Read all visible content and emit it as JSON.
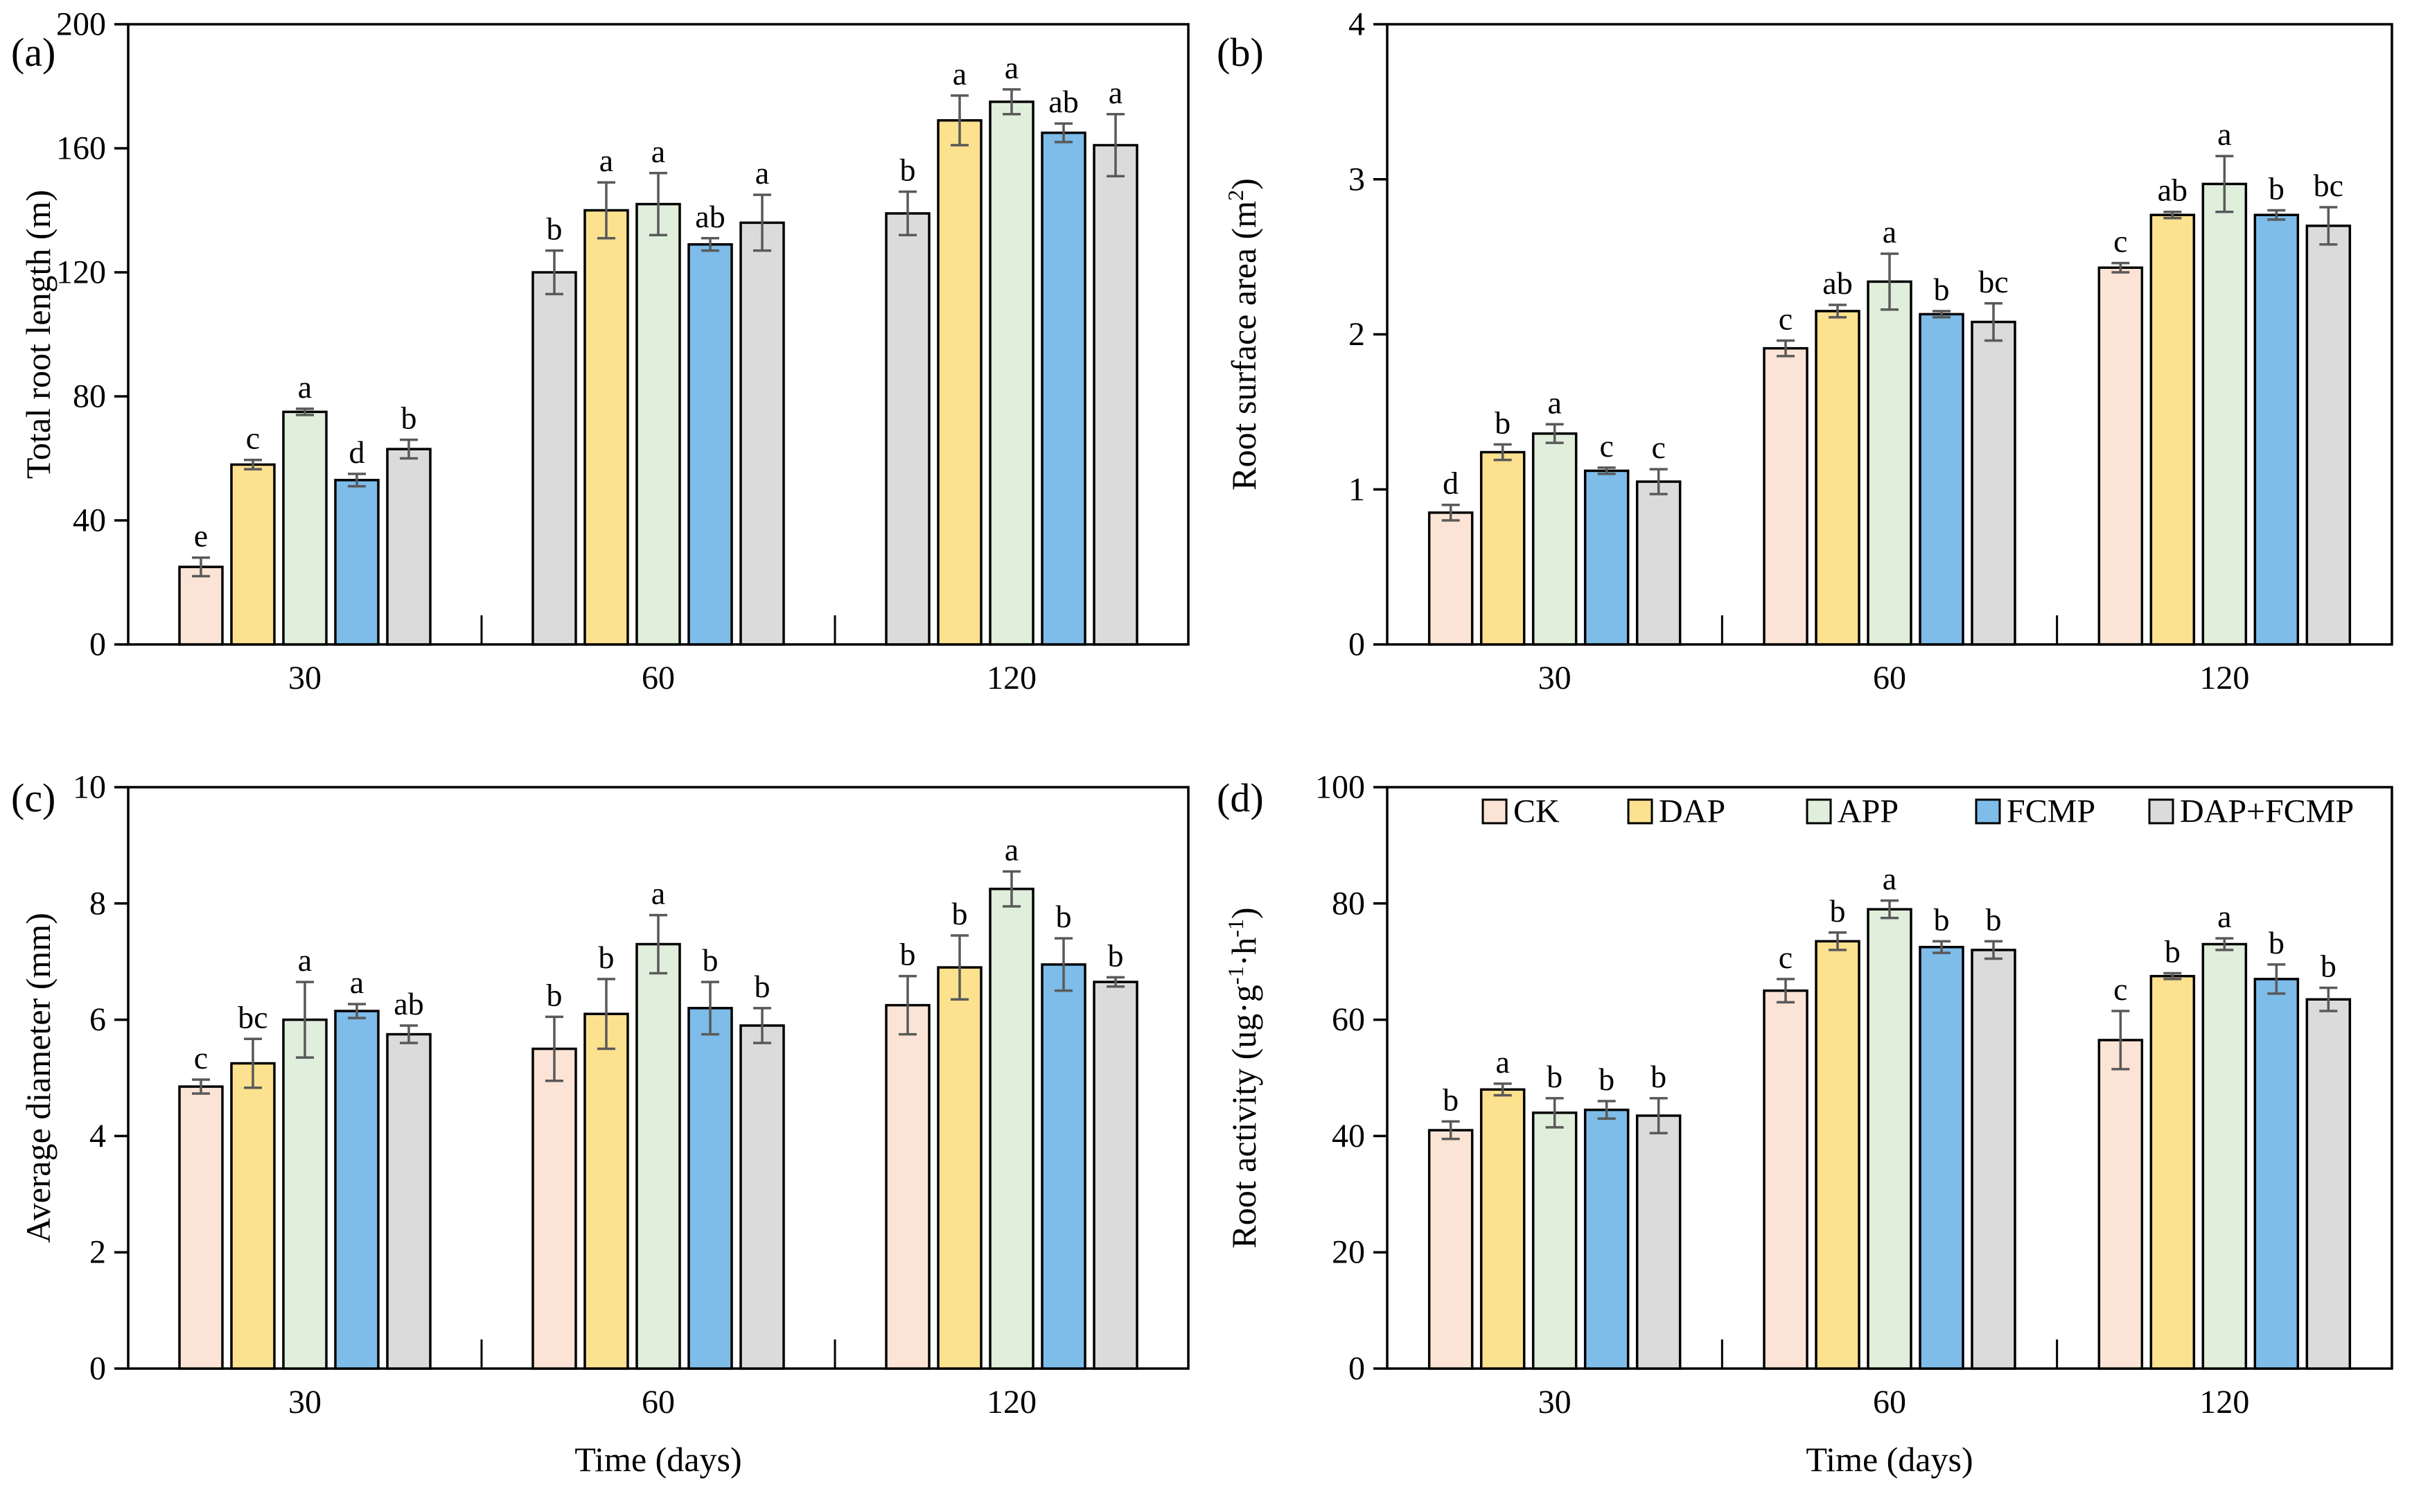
{
  "figure_title": "",
  "style": {
    "background": "#ffffff",
    "axis_color": "#000000",
    "bar_border_color": "#000000",
    "error_bar_color": "#595959",
    "series_colors": {
      "CK": "#FBE4D5",
      "DAP": "#FCE18F",
      "APP": "#E0EEDC",
      "FCMP": "#7EBCE9",
      "DAP+FCMP": "#DBDBDB"
    }
  },
  "legend": {
    "position": "top-inside-panel-d",
    "items": [
      {
        "label": "CK"
      },
      {
        "label": "DAP"
      },
      {
        "label": "APP"
      },
      {
        "label": "FCMP"
      },
      {
        "label": "DAP+FCMP"
      }
    ]
  },
  "categories": [
    "30",
    "60",
    "120"
  ],
  "xlabel": "Time (days)",
  "chart_data": [
    {
      "id": "a",
      "panel_label": "(a)",
      "type": "bar",
      "ylabel": "Total root length (m)",
      "ylabel_segments": [
        {
          "t": "Total root length (m)"
        }
      ],
      "ylim": [
        0,
        200
      ],
      "yticks": [
        0,
        40,
        80,
        120,
        160,
        200
      ],
      "categories": [
        "30",
        "60",
        "120"
      ],
      "xlabel": "",
      "show_legend": false,
      "series": [
        {
          "name": "CK",
          "values": [
            25,
            120,
            139
          ],
          "errors": [
            3,
            7,
            7
          ],
          "letters": [
            "e",
            "b",
            "b"
          ],
          "bar_colors": [
            "#FBE4D5",
            "#DBDBDB",
            "#DBDBDB"
          ]
        },
        {
          "name": "DAP",
          "values": [
            58,
            140,
            169
          ],
          "errors": [
            1.5,
            9,
            8
          ],
          "letters": [
            "c",
            "a",
            "a"
          ]
        },
        {
          "name": "APP",
          "values": [
            75,
            142,
            175
          ],
          "errors": [
            1,
            10,
            4
          ],
          "letters": [
            "a",
            "a",
            "a"
          ]
        },
        {
          "name": "FCMP",
          "values": [
            53,
            129,
            165
          ],
          "errors": [
            2,
            2,
            3
          ],
          "letters": [
            "d",
            "ab",
            "ab"
          ]
        },
        {
          "name": "DAP+FCMP",
          "values": [
            63,
            136,
            161
          ],
          "errors": [
            3,
            9,
            10
          ],
          "letters": [
            "b",
            "a",
            "a"
          ]
        }
      ]
    },
    {
      "id": "b",
      "panel_label": "(b)",
      "type": "bar",
      "ylabel": "Root surface area (m2)",
      "ylabel_segments": [
        {
          "t": "Root surface area (m"
        },
        {
          "t": "2",
          "sup": true
        },
        {
          "t": ")"
        }
      ],
      "ylim": [
        0,
        4
      ],
      "yticks": [
        0,
        1,
        2,
        3,
        4
      ],
      "categories": [
        "30",
        "60",
        "120"
      ],
      "xlabel": "",
      "show_legend": false,
      "series": [
        {
          "name": "CK",
          "values": [
            0.85,
            1.91,
            2.43
          ],
          "errors": [
            0.05,
            0.05,
            0.03
          ],
          "letters": [
            "d",
            "c",
            "c"
          ]
        },
        {
          "name": "DAP",
          "values": [
            1.24,
            2.15,
            2.77
          ],
          "errors": [
            0.05,
            0.04,
            0.02
          ],
          "letters": [
            "b",
            "ab",
            "ab"
          ]
        },
        {
          "name": "APP",
          "values": [
            1.36,
            2.34,
            2.97
          ],
          "errors": [
            0.06,
            0.18,
            0.18
          ],
          "letters": [
            "a",
            "a",
            "a"
          ]
        },
        {
          "name": "FCMP",
          "values": [
            1.12,
            2.13,
            2.77
          ],
          "errors": [
            0.02,
            0.02,
            0.03
          ],
          "letters": [
            "c",
            "b",
            "b"
          ]
        },
        {
          "name": "DAP+FCMP",
          "values": [
            1.05,
            2.08,
            2.7
          ],
          "errors": [
            0.08,
            0.12,
            0.12
          ],
          "letters": [
            "c",
            "bc",
            "bc"
          ]
        }
      ]
    },
    {
      "id": "c",
      "panel_label": "(c)",
      "type": "bar",
      "ylabel": "Average diameter (mm)",
      "ylabel_segments": [
        {
          "t": "Average diameter (mm)"
        }
      ],
      "ylim": [
        0,
        10
      ],
      "yticks": [
        0,
        2,
        4,
        6,
        8,
        10
      ],
      "categories": [
        "30",
        "60",
        "120"
      ],
      "xlabel": "Time (days)",
      "show_legend": false,
      "series": [
        {
          "name": "CK",
          "values": [
            4.85,
            5.5,
            6.25
          ],
          "errors": [
            0.12,
            0.55,
            0.5
          ],
          "letters": [
            "c",
            "b",
            "b"
          ]
        },
        {
          "name": "DAP",
          "values": [
            5.25,
            6.1,
            6.9
          ],
          "errors": [
            0.42,
            0.6,
            0.55
          ],
          "letters": [
            "bc",
            "b",
            "b"
          ]
        },
        {
          "name": "APP",
          "values": [
            6.0,
            7.3,
            8.25
          ],
          "errors": [
            0.65,
            0.5,
            0.3
          ],
          "letters": [
            "a",
            "a",
            "a"
          ]
        },
        {
          "name": "FCMP",
          "values": [
            6.15,
            6.2,
            6.95
          ],
          "errors": [
            0.12,
            0.45,
            0.45
          ],
          "letters": [
            "a",
            "b",
            "b"
          ]
        },
        {
          "name": "DAP+FCMP",
          "values": [
            5.75,
            5.9,
            6.65
          ],
          "errors": [
            0.15,
            0.3,
            0.08
          ],
          "letters": [
            "ab",
            "b",
            "b"
          ]
        }
      ]
    },
    {
      "id": "d",
      "panel_label": "(d)",
      "type": "bar",
      "ylabel": "Root activity (ug·g-1·h-1)",
      "ylabel_segments": [
        {
          "t": "Root activity (ug·g"
        },
        {
          "t": "-1",
          "sup": true
        },
        {
          "t": "·h"
        },
        {
          "t": "-1",
          "sup": true
        },
        {
          "t": ")"
        }
      ],
      "ylim": [
        0,
        100
      ],
      "yticks": [
        0,
        20,
        40,
        60,
        80,
        100
      ],
      "categories": [
        "30",
        "60",
        "120"
      ],
      "xlabel": "Time (days)",
      "show_legend": true,
      "series": [
        {
          "name": "CK",
          "values": [
            41,
            65,
            56.5
          ],
          "errors": [
            1.5,
            2,
            5
          ],
          "letters": [
            "b",
            "c",
            "c"
          ]
        },
        {
          "name": "DAP",
          "values": [
            48,
            73.5,
            67.5
          ],
          "errors": [
            1,
            1.5,
            0.5
          ],
          "letters": [
            "a",
            "b",
            "b"
          ]
        },
        {
          "name": "APP",
          "values": [
            44,
            79,
            73
          ],
          "errors": [
            2.5,
            1.5,
            1
          ],
          "letters": [
            "b",
            "a",
            "a"
          ]
        },
        {
          "name": "FCMP",
          "values": [
            44.5,
            72.5,
            67
          ],
          "errors": [
            1.5,
            1,
            2.5
          ],
          "letters": [
            "b",
            "b",
            "b"
          ]
        },
        {
          "name": "DAP+FCMP",
          "values": [
            43.5,
            72,
            63.5
          ],
          "errors": [
            3,
            1.5,
            2
          ],
          "letters": [
            "b",
            "b",
            "b"
          ]
        }
      ]
    }
  ]
}
